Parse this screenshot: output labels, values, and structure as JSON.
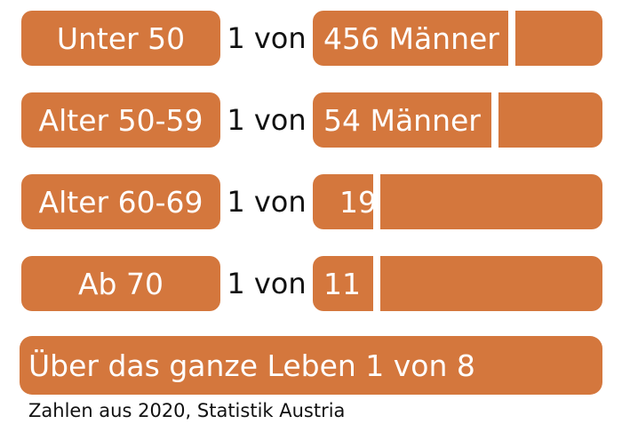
{
  "chart_data": {
    "type": "bar",
    "categories": [
      "Unter 50",
      "Alter 50-59",
      "Alter 60-69",
      "Ab 70"
    ],
    "connector": "1 von",
    "values": [
      456,
      54,
      19,
      11
    ],
    "value_labels": [
      "456 Männer",
      "54 Männer",
      "19",
      "11"
    ],
    "lifetime_label": "Über das ganze Leben 1 von 8",
    "source": "Zahlen aus 2020, Statistik Austria"
  },
  "colors": {
    "bar": "#d4773d",
    "divider": "#ffffff",
    "text": "#111111"
  }
}
